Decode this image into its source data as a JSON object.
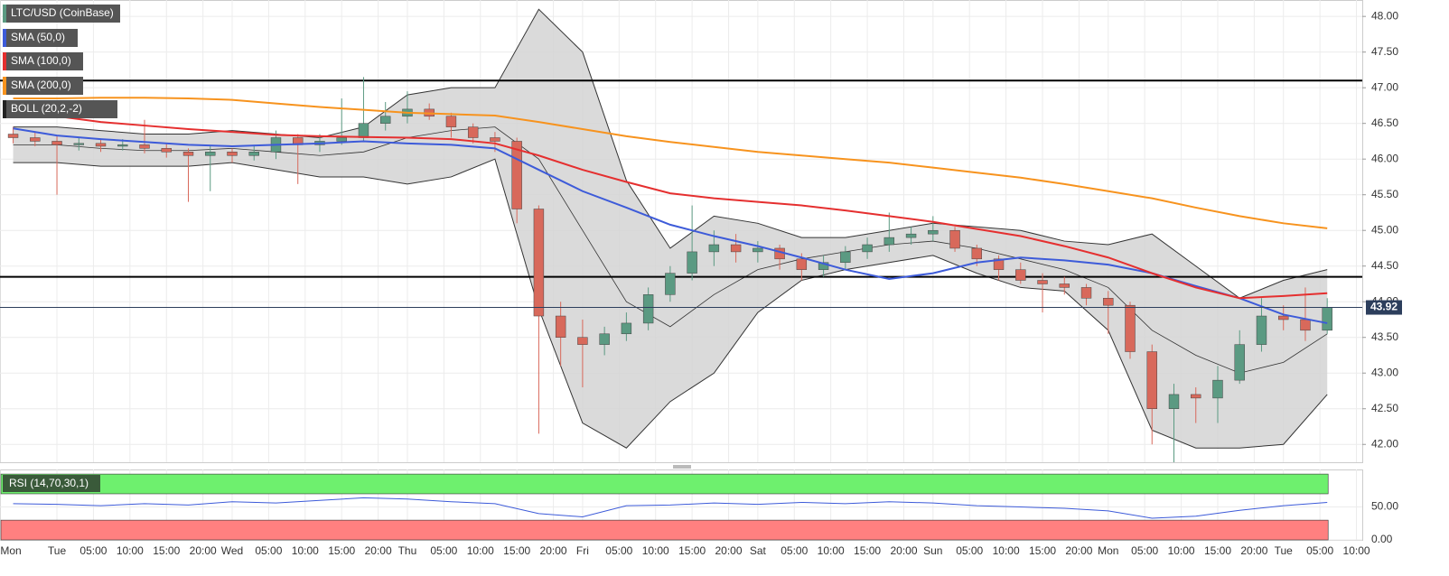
{
  "chart_data": {
    "type": "candlestick",
    "title": "LTC/USD (CoinBase)",
    "xlim": [
      16.2,
      202.8
    ],
    "ylim": [
      41.75,
      48.23
    ],
    "grid": true,
    "up_color": "#5b9a82",
    "down_color": "#d8695b",
    "yticks": [
      {
        "value": 42,
        "label": "42.00"
      },
      {
        "value": 42.5,
        "label": "42.50"
      },
      {
        "value": 43,
        "label": "43.00"
      },
      {
        "value": 43.5,
        "label": "43.50"
      },
      {
        "value": 44,
        "label": "44.00"
      },
      {
        "value": 44.5,
        "label": "44.50"
      },
      {
        "value": 45,
        "label": "45.00"
      },
      {
        "value": 45.5,
        "label": "45.50"
      },
      {
        "value": 46,
        "label": "46.00"
      },
      {
        "value": 46.5,
        "label": "46.50"
      },
      {
        "value": 47,
        "label": "47.00"
      },
      {
        "value": 47.5,
        "label": "47.50"
      },
      {
        "value": 48,
        "label": "48.00"
      }
    ],
    "xticks": [
      {
        "value": 16.2,
        "label": "Mon"
      },
      {
        "value": 24,
        "label": "Tue"
      },
      {
        "value": 29,
        "label": "05:00"
      },
      {
        "value": 34,
        "label": "10:00"
      },
      {
        "value": 39,
        "label": "15:00"
      },
      {
        "value": 44,
        "label": "20:00"
      },
      {
        "value": 48,
        "label": "Wed"
      },
      {
        "value": 53,
        "label": "05:00"
      },
      {
        "value": 58,
        "label": "10:00"
      },
      {
        "value": 63,
        "label": "15:00"
      },
      {
        "value": 68,
        "label": "20:00"
      },
      {
        "value": 72,
        "label": "Thu"
      },
      {
        "value": 77,
        "label": "05:00"
      },
      {
        "value": 82,
        "label": "10:00"
      },
      {
        "value": 87,
        "label": "15:00"
      },
      {
        "value": 92,
        "label": "20:00"
      },
      {
        "value": 96,
        "label": "Fri"
      },
      {
        "value": 101,
        "label": "05:00"
      },
      {
        "value": 106,
        "label": "10:00"
      },
      {
        "value": 111,
        "label": "15:00"
      },
      {
        "value": 116,
        "label": "20:00"
      },
      {
        "value": 120,
        "label": "Sat"
      },
      {
        "value": 125,
        "label": "05:00"
      },
      {
        "value": 130,
        "label": "10:00"
      },
      {
        "value": 135,
        "label": "15:00"
      },
      {
        "value": 140,
        "label": "20:00"
      },
      {
        "value": 144,
        "label": "Sun"
      },
      {
        "value": 149,
        "label": "05:00"
      },
      {
        "value": 154,
        "label": "10:00"
      },
      {
        "value": 159,
        "label": "15:00"
      },
      {
        "value": 164,
        "label": "20:00"
      },
      {
        "value": 168,
        "label": "Mon"
      },
      {
        "value": 173,
        "label": "05:00"
      },
      {
        "value": 178,
        "label": "10:00"
      },
      {
        "value": 183,
        "label": "15:00"
      },
      {
        "value": 188,
        "label": "20:00"
      },
      {
        "value": 192,
        "label": "Tue"
      },
      {
        "value": 197,
        "label": "05:00"
      },
      {
        "value": 202,
        "label": "10:00"
      }
    ],
    "candles": {
      "x": [
        18,
        21,
        24,
        27,
        30,
        33,
        36,
        39,
        42,
        45,
        48,
        51,
        54,
        57,
        60,
        63,
        66,
        69,
        72,
        75,
        78,
        81,
        84,
        87,
        90,
        93,
        96,
        99,
        102,
        105,
        108,
        111,
        114,
        117,
        120,
        123,
        126,
        129,
        132,
        135,
        138,
        141,
        144,
        147,
        150,
        153,
        156,
        159,
        162,
        165,
        168,
        171,
        174,
        177,
        180,
        183,
        186,
        189,
        192,
        195,
        198
      ],
      "ohlc": [
        [
          46.35,
          46.45,
          46.22,
          46.3
        ],
        [
          46.3,
          46.38,
          46.18,
          46.25
        ],
        [
          46.25,
          46.32,
          45.5,
          46.2
        ],
        [
          46.2,
          46.3,
          46.12,
          46.22
        ],
        [
          46.22,
          46.28,
          46.1,
          46.18
        ],
        [
          46.18,
          46.28,
          46.12,
          46.2
        ],
        [
          46.2,
          46.55,
          46.08,
          46.15
        ],
        [
          46.15,
          46.22,
          46.02,
          46.1
        ],
        [
          46.1,
          46.15,
          45.4,
          46.05
        ],
        [
          46.05,
          46.18,
          45.55,
          46.1
        ],
        [
          46.1,
          46.15,
          45.95,
          46.05
        ],
        [
          46.05,
          46.2,
          45.98,
          46.1
        ],
        [
          46.1,
          46.4,
          46.0,
          46.3
        ],
        [
          46.3,
          46.35,
          45.65,
          46.2
        ],
        [
          46.2,
          46.35,
          46.1,
          46.25
        ],
        [
          46.25,
          46.85,
          46.2,
          46.3
        ],
        [
          46.3,
          47.15,
          46.25,
          46.5
        ],
        [
          46.5,
          46.8,
          46.4,
          46.6
        ],
        [
          46.6,
          46.95,
          46.5,
          46.7
        ],
        [
          46.7,
          46.78,
          46.55,
          46.6
        ],
        [
          46.6,
          46.65,
          46.3,
          46.45
        ],
        [
          46.45,
          46.5,
          46.22,
          46.3
        ],
        [
          46.3,
          46.38,
          46.1,
          46.25
        ],
        [
          46.25,
          46.3,
          45.1,
          45.3
        ],
        [
          45.3,
          45.35,
          42.15,
          43.8
        ],
        [
          43.8,
          44.0,
          43.1,
          43.5
        ],
        [
          43.5,
          43.75,
          42.8,
          43.4
        ],
        [
          43.4,
          43.65,
          43.25,
          43.55
        ],
        [
          43.55,
          43.85,
          43.45,
          43.7
        ],
        [
          43.7,
          44.2,
          43.6,
          44.1
        ],
        [
          44.1,
          44.5,
          44.0,
          44.4
        ],
        [
          44.4,
          45.35,
          44.3,
          44.7
        ],
        [
          44.7,
          45.0,
          44.5,
          44.8
        ],
        [
          44.8,
          44.95,
          44.55,
          44.7
        ],
        [
          44.7,
          44.85,
          44.55,
          44.75
        ],
        [
          44.75,
          44.8,
          44.45,
          44.6
        ],
        [
          44.6,
          44.68,
          44.3,
          44.45
        ],
        [
          44.45,
          44.65,
          44.35,
          44.55
        ],
        [
          44.55,
          44.78,
          44.45,
          44.7
        ],
        [
          44.7,
          44.9,
          44.6,
          44.8
        ],
        [
          44.8,
          45.25,
          44.7,
          44.9
        ],
        [
          44.9,
          45.05,
          44.8,
          44.95
        ],
        [
          44.95,
          45.2,
          44.85,
          45.0
        ],
        [
          45.0,
          45.05,
          44.7,
          44.75
        ],
        [
          44.75,
          44.8,
          44.5,
          44.6
        ],
        [
          44.6,
          44.65,
          44.3,
          44.45
        ],
        [
          44.45,
          44.55,
          44.25,
          44.3
        ],
        [
          44.3,
          44.4,
          43.85,
          44.25
        ],
        [
          44.25,
          44.35,
          44.1,
          44.2
        ],
        [
          44.2,
          44.25,
          43.95,
          44.05
        ],
        [
          44.05,
          44.15,
          43.55,
          43.95
        ],
        [
          43.95,
          44.0,
          43.2,
          43.3
        ],
        [
          43.3,
          43.4,
          42.0,
          42.5
        ],
        [
          42.5,
          42.85,
          41.75,
          42.7
        ],
        [
          42.7,
          42.8,
          42.3,
          42.65
        ],
        [
          42.65,
          43.1,
          42.3,
          42.9
        ],
        [
          42.9,
          43.6,
          42.85,
          43.4
        ],
        [
          43.4,
          44.05,
          43.3,
          43.8
        ],
        [
          43.8,
          43.95,
          43.6,
          43.75
        ],
        [
          43.75,
          44.2,
          43.45,
          43.6
        ],
        [
          43.6,
          44.05,
          43.55,
          43.92
        ]
      ]
    },
    "indicator_x": [
      18,
      24,
      30,
      36,
      42,
      48,
      54,
      60,
      66,
      72,
      78,
      84,
      90,
      96,
      102,
      108,
      114,
      120,
      126,
      132,
      138,
      144,
      150,
      156,
      162,
      168,
      174,
      180,
      186,
      192,
      198
    ],
    "bands": {
      "name": "BOLL (20,2,-2)",
      "color": "#333333",
      "fill": "#d4d4d4",
      "upper": [
        46.45,
        46.45,
        46.4,
        46.35,
        46.35,
        46.4,
        46.35,
        46.3,
        46.45,
        46.9,
        47.0,
        47.0,
        48.1,
        47.5,
        45.7,
        44.75,
        45.2,
        45.1,
        44.9,
        44.9,
        45.0,
        45.1,
        45.05,
        45.0,
        44.85,
        44.8,
        44.95,
        44.5,
        44.05,
        44.3,
        44.45
      ],
      "middle": [
        46.2,
        46.2,
        46.15,
        46.12,
        46.12,
        46.15,
        46.1,
        46.05,
        46.1,
        46.3,
        46.4,
        46.45,
        46.0,
        45.0,
        44.0,
        43.65,
        44.1,
        44.45,
        44.6,
        44.7,
        44.8,
        44.85,
        44.75,
        44.6,
        44.45,
        44.2,
        43.6,
        43.25,
        43.0,
        43.15,
        43.55
      ],
      "lower": [
        45.95,
        45.95,
        45.9,
        45.9,
        45.9,
        45.95,
        45.85,
        45.75,
        45.75,
        45.65,
        45.75,
        46.0,
        43.9,
        42.3,
        41.95,
        42.6,
        43.0,
        43.85,
        44.3,
        44.45,
        44.55,
        44.65,
        44.4,
        44.2,
        44.15,
        43.6,
        42.2,
        41.95,
        41.95,
        42.0,
        42.7
      ]
    },
    "series": [
      {
        "name": "SMA (50,0)",
        "color": "#3d5bd9",
        "values": [
          46.43,
          46.33,
          46.28,
          46.24,
          46.2,
          46.18,
          46.2,
          46.22,
          46.25,
          46.22,
          46.2,
          46.15,
          45.85,
          45.55,
          45.32,
          45.08,
          44.92,
          44.78,
          44.62,
          44.45,
          44.32,
          44.4,
          44.55,
          44.62,
          44.58,
          44.52,
          44.4,
          44.22,
          44.05,
          43.82,
          43.7
        ]
      },
      {
        "name": "SMA (100,0)",
        "color": "#e52f2f",
        "values": [
          46.68,
          46.6,
          46.52,
          46.47,
          46.42,
          46.38,
          46.34,
          46.32,
          46.31,
          46.3,
          46.28,
          46.22,
          46.05,
          45.85,
          45.68,
          45.52,
          45.45,
          45.4,
          45.35,
          45.28,
          45.2,
          45.12,
          45.02,
          44.92,
          44.78,
          44.62,
          44.4,
          44.2,
          44.05,
          44.08,
          44.12
        ]
      },
      {
        "name": "SMA (200,0)",
        "color": "#f7931e",
        "values": [
          46.85,
          46.85,
          46.86,
          46.86,
          46.85,
          46.83,
          46.78,
          46.73,
          46.69,
          46.65,
          46.63,
          46.61,
          46.52,
          46.42,
          46.32,
          46.24,
          46.17,
          46.1,
          46.05,
          46.0,
          45.95,
          45.88,
          45.81,
          45.74,
          45.65,
          45.55,
          45.45,
          45.32,
          45.2,
          45.1,
          45.03
        ]
      }
    ],
    "levels": [
      47.1,
      44.35
    ],
    "last_price": {
      "value": 43.92,
      "label": "43.92",
      "color": "#2c3e5c"
    },
    "rsi": {
      "name": "RSI (14,70,30,1)",
      "color": "#3d5bd9",
      "ylim": [
        0,
        107
      ],
      "yticks": [
        {
          "value": 0,
          "label": "0.00"
        },
        {
          "value": 50,
          "label": "50.00"
        }
      ],
      "overbought": [
        70,
        100
      ],
      "oversold": [
        0,
        30
      ],
      "values": [
        55,
        54,
        52,
        55,
        53,
        58,
        56,
        60,
        64,
        62,
        58,
        55,
        40,
        35,
        52,
        53,
        56,
        54,
        57,
        55,
        58,
        56,
        52,
        50,
        48,
        44,
        33,
        36,
        45,
        52,
        57
      ]
    }
  }
}
